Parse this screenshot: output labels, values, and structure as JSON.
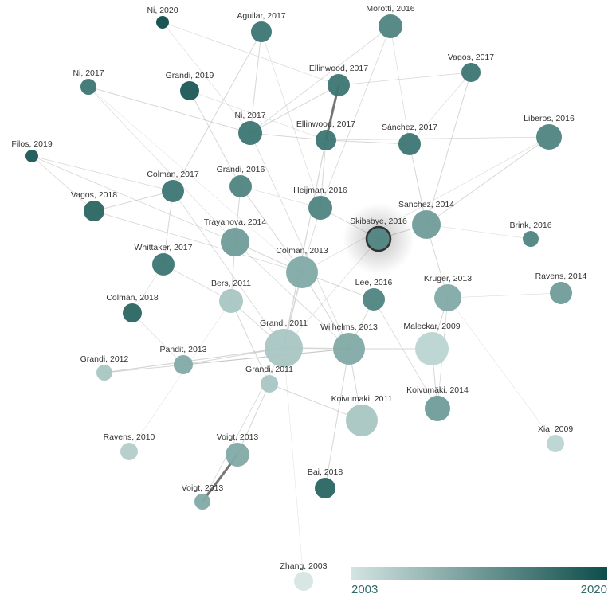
{
  "nodes": [
    {
      "label": "Ni, 2020"
    },
    {
      "label": "Aguilar, 2017"
    },
    {
      "label": "Morotti, 2016"
    },
    {
      "label": "Ni, 2017"
    },
    {
      "label": "Grandi, 2019"
    },
    {
      "label": "Ellinwood, 2017"
    },
    {
      "label": "Vagos, 2017"
    },
    {
      "label": "Filos, 2019"
    },
    {
      "label": "Ni, 2017"
    },
    {
      "label": "Ellinwood, 2017"
    },
    {
      "label": "Sánchez, 2017"
    },
    {
      "label": "Liberos, 2016"
    },
    {
      "label": "Colman, 2017"
    },
    {
      "label": "Grandi, 2016"
    },
    {
      "label": "Vagos, 2018"
    },
    {
      "label": "Heijman, 2016"
    },
    {
      "label": "Skibsbye, 2016"
    },
    {
      "label": "Sanchez, 2014"
    },
    {
      "label": "Brink, 2016"
    },
    {
      "label": "Trayanova, 2014"
    },
    {
      "label": "Whittaker, 2017"
    },
    {
      "label": "Colman, 2013"
    },
    {
      "label": "Ravens, 2014"
    },
    {
      "label": "Bers, 2011"
    },
    {
      "label": "Lee, 2016"
    },
    {
      "label": "Krüger, 2013"
    },
    {
      "label": "Colman, 2018"
    },
    {
      "label": "Grandi, 2011"
    },
    {
      "label": "Wilhelms, 2013"
    },
    {
      "label": "Maleckar, 2009"
    },
    {
      "label": "Grandi, 2012"
    },
    {
      "label": "Pandit, 2013"
    },
    {
      "label": "Grandi, 2011"
    },
    {
      "label": "Koivumaki, 2011"
    },
    {
      "label": "Koivumäki, 2014"
    },
    {
      "label": "Xia, 2009"
    },
    {
      "label": "Ravens, 2010"
    },
    {
      "label": "Voigt, 2013"
    },
    {
      "label": "Bai, 2018"
    },
    {
      "label": "Voigt, 2013"
    },
    {
      "label": "Zhang, 2003"
    }
  ],
  "colorbar": {
    "min_label": "2003",
    "max_label": "2020"
  }
}
